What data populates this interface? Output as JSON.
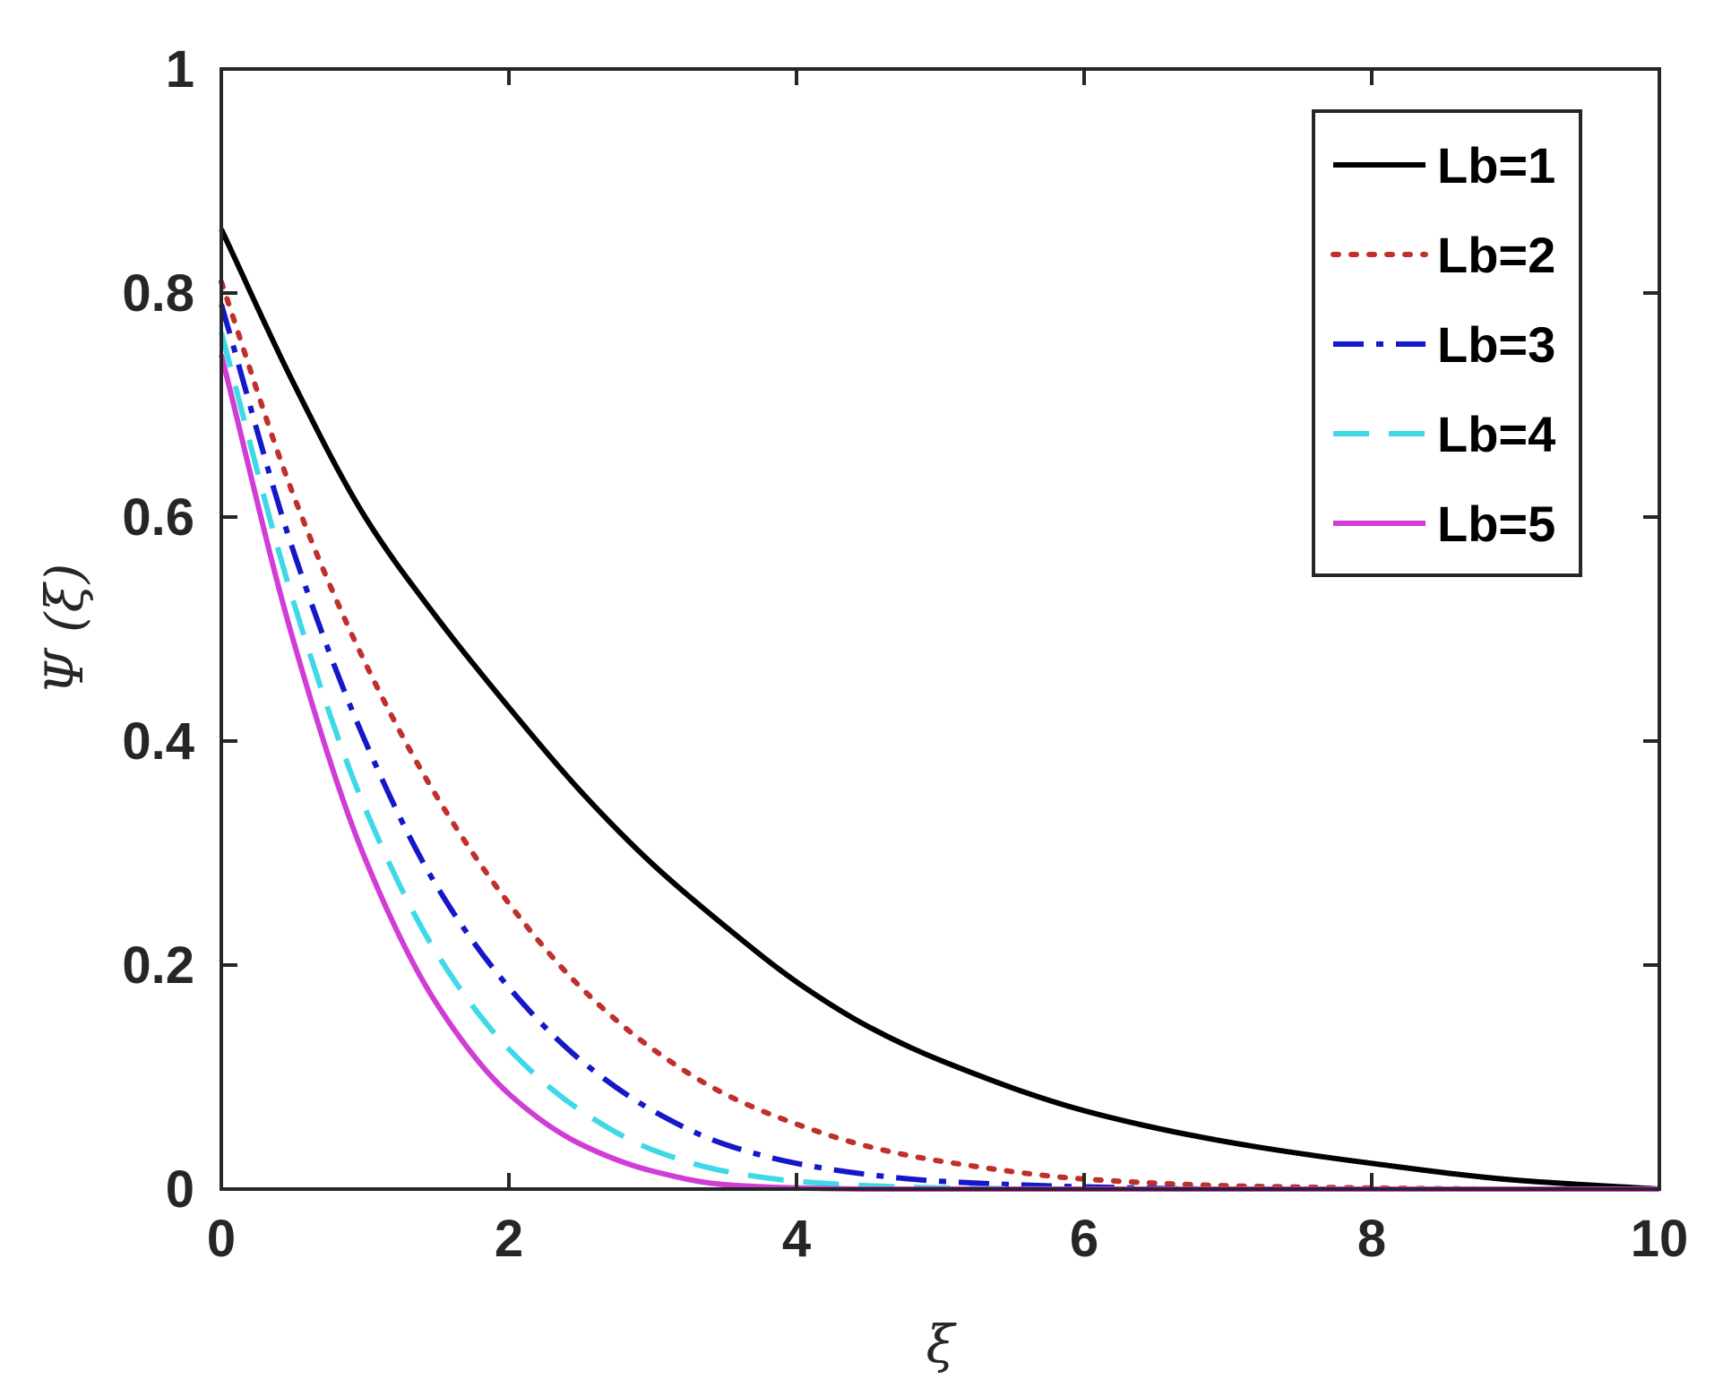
{
  "chart_data": {
    "type": "line",
    "title": "",
    "xlabel": "ξ",
    "ylabel": "Ψ (ξ)",
    "xlim": [
      0,
      10
    ],
    "ylim": [
      0,
      1
    ],
    "xticks": [
      0,
      2,
      4,
      6,
      8,
      10
    ],
    "xtick_labels": [
      "0",
      "2",
      "4",
      "6",
      "8",
      "10"
    ],
    "yticks": [
      0,
      0.2,
      0.4,
      0.6,
      0.8,
      1
    ],
    "ytick_labels": [
      "0",
      "0.2",
      "0.4",
      "0.6",
      "0.8",
      "1"
    ],
    "grid": false,
    "legend_position": "top-right",
    "x": [
      0,
      0.5,
      1,
      1.5,
      2,
      2.5,
      3,
      3.5,
      4,
      4.5,
      5,
      6,
      7,
      8,
      9,
      10
    ],
    "series": [
      {
        "name": "Lb=1",
        "color": "#000000",
        "style": "solid",
        "values": [
          0.857,
          0.72,
          0.6,
          0.51,
          0.43,
          0.355,
          0.29,
          0.235,
          0.185,
          0.145,
          0.115,
          0.07,
          0.042,
          0.023,
          0.008,
          0.0
        ]
      },
      {
        "name": "Lb=2",
        "color": "#c0302b",
        "style": "dotted",
        "values": [
          0.81,
          0.62,
          0.47,
          0.35,
          0.255,
          0.18,
          0.125,
          0.085,
          0.058,
          0.038,
          0.025,
          0.009,
          0.003,
          0.001,
          0.0,
          0.0
        ]
      },
      {
        "name": "Lb=3",
        "color": "#1418c8",
        "style": "dashdot",
        "values": [
          0.79,
          0.57,
          0.4,
          0.27,
          0.18,
          0.115,
          0.07,
          0.04,
          0.023,
          0.013,
          0.007,
          0.002,
          0.0,
          0.0,
          0.0,
          0.0
        ]
      },
      {
        "name": "Lb=4",
        "color": "#3dd9e6",
        "style": "dashed",
        "values": [
          0.765,
          0.525,
          0.34,
          0.21,
          0.125,
          0.07,
          0.035,
          0.016,
          0.007,
          0.003,
          0.001,
          0.0,
          0.0,
          0.0,
          0.0,
          0.0
        ]
      },
      {
        "name": "Lb=5",
        "color": "#d23cd6",
        "style": "solid",
        "values": [
          0.745,
          0.49,
          0.295,
          0.165,
          0.085,
          0.04,
          0.016,
          0.004,
          0.001,
          0.0,
          0.0,
          0.0,
          0.0,
          0.0,
          0.0,
          0.0
        ]
      }
    ]
  }
}
